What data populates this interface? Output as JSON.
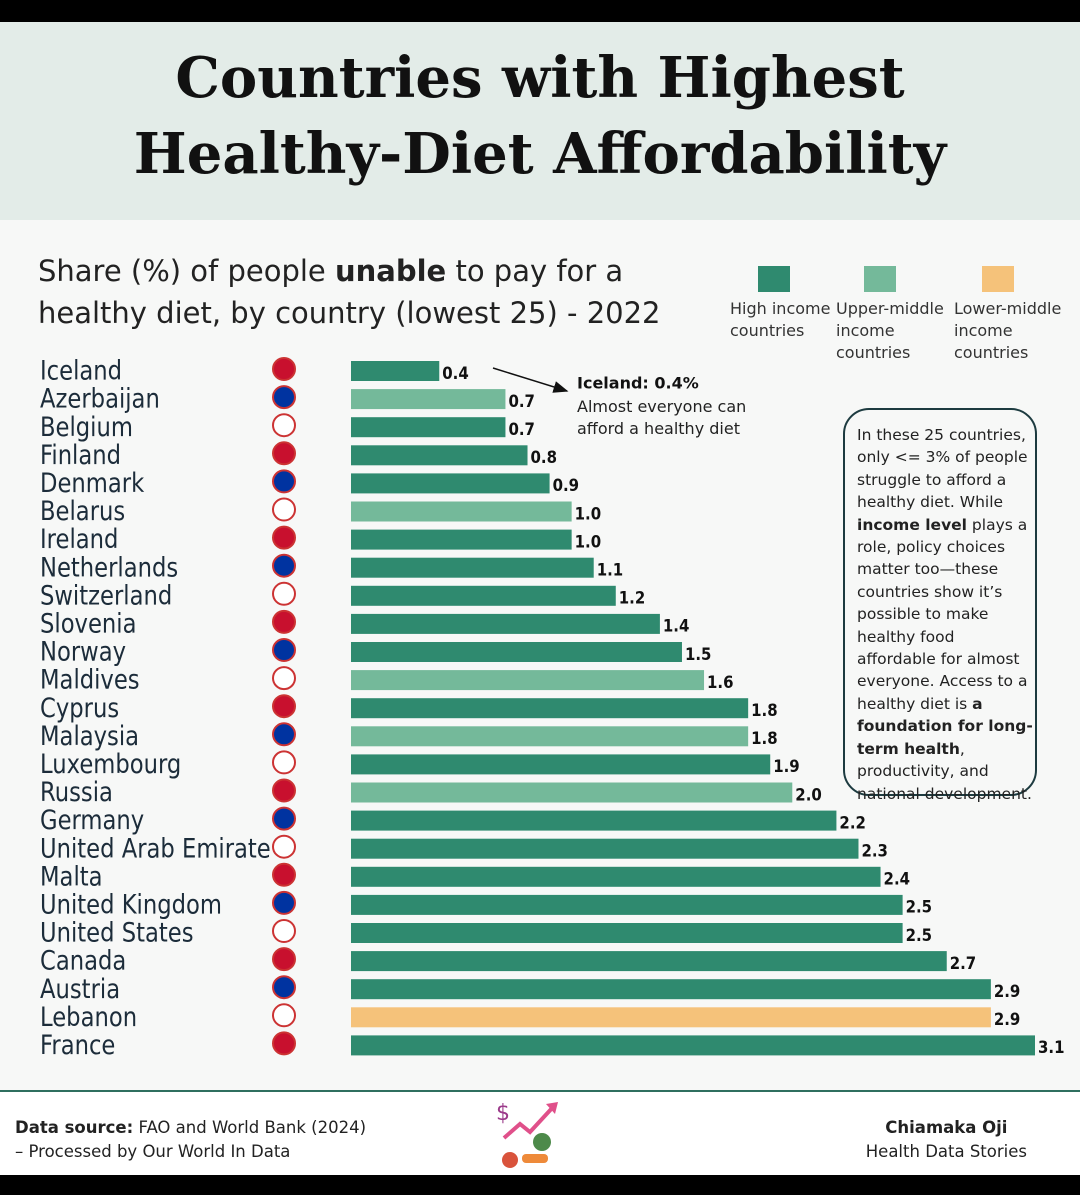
{
  "chart_data": {
    "type": "bar",
    "title": [
      "Countries with Highest",
      "Healthy-Diet Affordability"
    ],
    "subtitle": [
      {
        "text": "Share (%) of people "
      },
      {
        "text": "unable",
        "bold": true
      },
      {
        "text": " to pay for a healthy diet, by country (lowest 25) - 2022"
      }
    ],
    "categories": [
      "Iceland",
      "Azerbaijan",
      "Belgium",
      "Finland",
      "Denmark",
      "Belarus",
      "Ireland",
      "Netherlands",
      "Switzerland",
      "Slovenia",
      "Norway",
      "Maldives",
      "Cyprus",
      "Malaysia",
      "Luxembourg",
      "Russia",
      "Germany",
      "United Arab Emirate",
      "Malta",
      "United Kingdom",
      "United States",
      "Canada",
      "Austria",
      "Lebanon",
      "France"
    ],
    "xlim": [
      0,
      3.1
    ],
    "series": [
      {
        "name": "High income countries",
        "color": "#2f8a6f",
        "values": [
          0.4,
          null,
          0.7,
          0.8,
          0.9,
          null,
          1.0,
          1.1,
          1.2,
          1.4,
          1.5,
          null,
          1.8,
          null,
          1.9,
          null,
          2.2,
          2.3,
          2.4,
          2.5,
          2.5,
          2.7,
          2.9,
          null,
          3.1
        ],
        "value_labels": [
          "0.4",
          null,
          "0.7",
          "0.8",
          "0.9",
          null,
          "1.0",
          "1.1",
          "1.2",
          "1.4",
          "1.5",
          null,
          "1.8",
          null,
          "1.9",
          null,
          "2.2",
          "2.3",
          "2.4",
          "2.5",
          "2.5",
          "2.7",
          "2.9",
          null,
          "3.1"
        ]
      },
      {
        "name": "Upper-middle income countries",
        "color": "#74b99a",
        "values": [
          null,
          0.7,
          null,
          null,
          null,
          1.0,
          null,
          null,
          null,
          null,
          null,
          1.6,
          null,
          1.8,
          null,
          2.0,
          null,
          null,
          null,
          null,
          null,
          null,
          null,
          null,
          null
        ],
        "value_labels": [
          null,
          "0.7",
          null,
          null,
          null,
          "1.0",
          null,
          null,
          null,
          null,
          null,
          "1.6",
          null,
          "1.8",
          null,
          "2.0",
          null,
          null,
          null,
          null,
          null,
          null,
          null,
          null,
          null
        ]
      },
      {
        "name": "Lower-middle income countries",
        "color": "#f5c27a",
        "values": [
          null,
          null,
          null,
          null,
          null,
          null,
          null,
          null,
          null,
          null,
          null,
          null,
          null,
          null,
          null,
          null,
          null,
          null,
          null,
          null,
          null,
          null,
          null,
          2.9,
          null
        ],
        "value_labels": [
          null,
          null,
          null,
          null,
          null,
          null,
          null,
          null,
          null,
          null,
          null,
          null,
          null,
          null,
          null,
          null,
          null,
          null,
          null,
          null,
          null,
          null,
          null,
          "2.9",
          null
        ]
      }
    ],
    "annotation": {
      "title": "Iceland: 0.4%",
      "text": "Almost everyone can afford a healthy diet"
    },
    "note": [
      {
        "text": "In these 25 countries, only <= 3% of people struggle to afford a healthy diet. While "
      },
      {
        "text": "income level",
        "bold": true
      },
      {
        "text": " plays a role, policy choices matter too—these countries show it’s possible to make healthy food affordable for almost everyone. Access to a healthy diet is "
      },
      {
        "text": "a foundation for long-term health",
        "bold": true
      },
      {
        "text": ", productivity, and national development."
      }
    ],
    "source": [
      {
        "text": "Data source:",
        "bold": true
      },
      {
        "text": " FAO and World Bank (2024) – Processed by Our World In Data"
      }
    ],
    "author": "Chiamaka Oji",
    "author_subtitle": "Health Data Stories"
  }
}
